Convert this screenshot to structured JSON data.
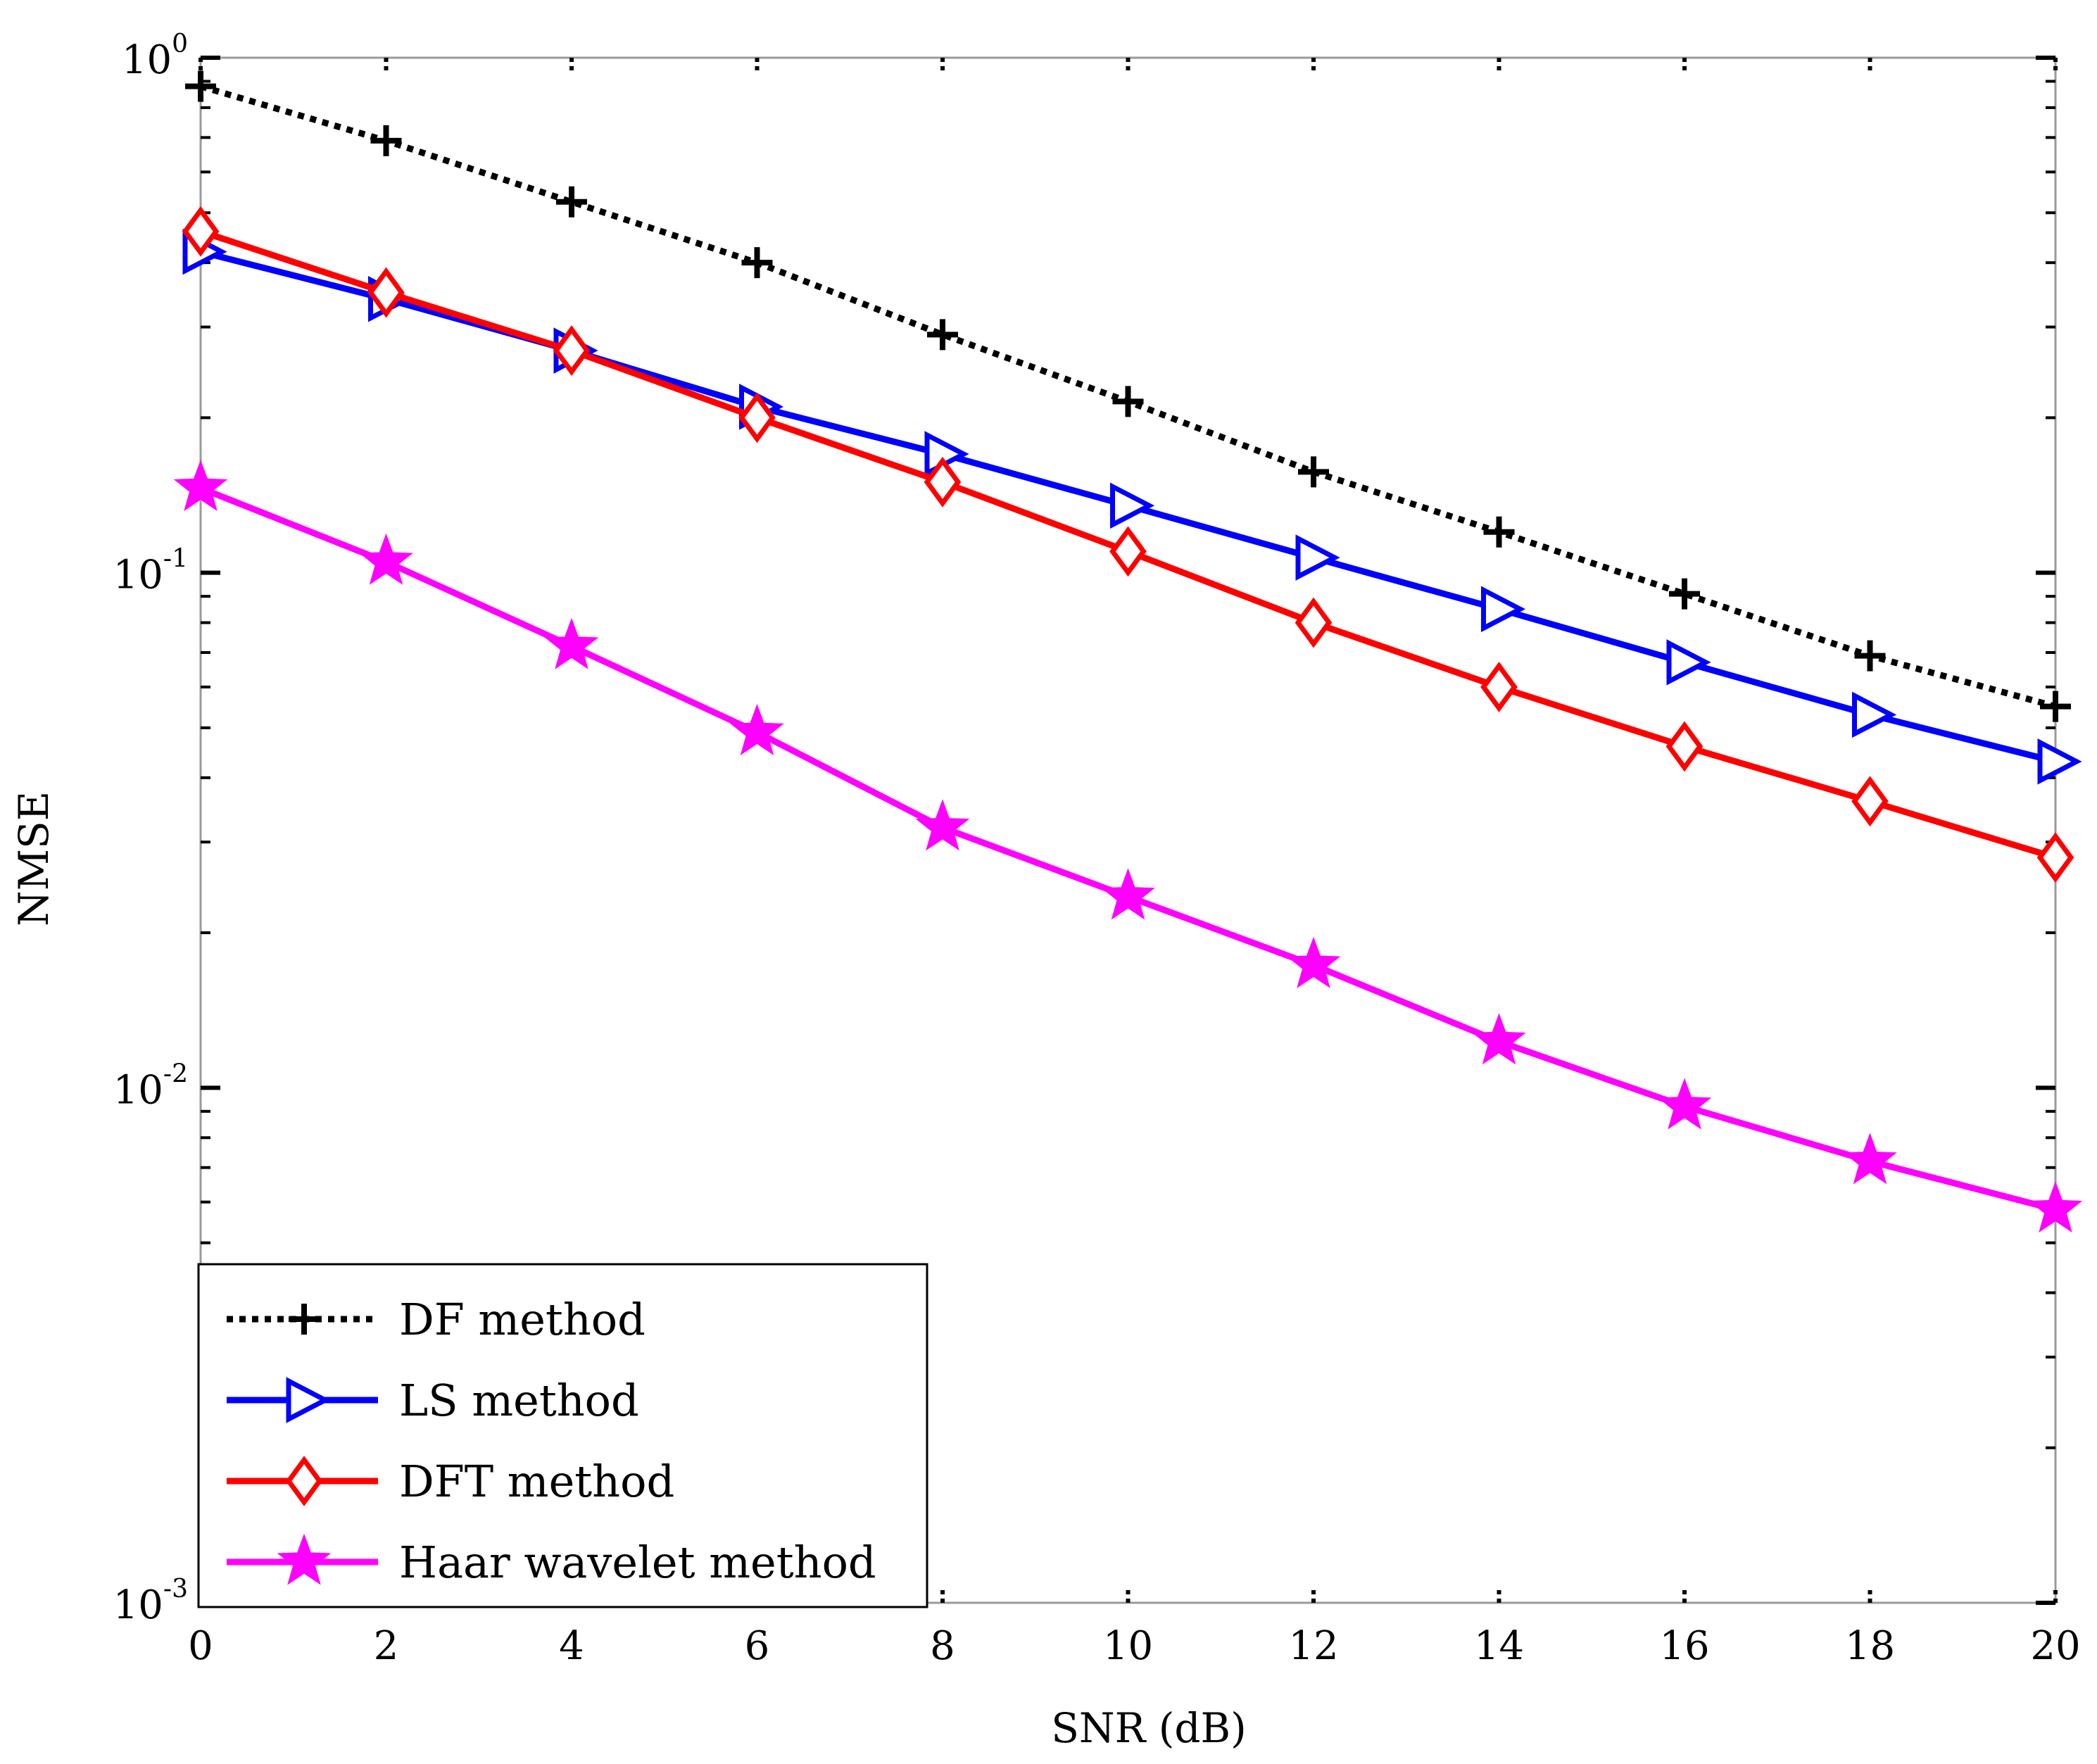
{
  "chart_data": {
    "type": "line",
    "title": "",
    "xlabel": "SNR (dB)",
    "ylabel": "NMSE",
    "yscale": "log",
    "xlim": [
      0,
      20
    ],
    "ylim": [
      0.001,
      1
    ],
    "x": [
      0,
      2,
      4,
      6,
      8,
      10,
      12,
      14,
      16,
      18,
      20
    ],
    "x_ticks": [
      "0",
      "2",
      "4",
      "6",
      "8",
      "10",
      "12",
      "14",
      "16",
      "18",
      "20"
    ],
    "y_ticks": [
      {
        "base": "10",
        "exp": "-3"
      },
      {
        "base": "10",
        "exp": "-2"
      },
      {
        "base": "10",
        "exp": "-1"
      },
      {
        "base": "10",
        "exp": "0"
      }
    ],
    "grid": false,
    "legend_position": "bottom-left",
    "series": [
      {
        "name": "DF method",
        "color": "#000000",
        "line_style": "dotted",
        "marker": "plus",
        "values": [
          0.88,
          0.69,
          0.525,
          0.4,
          0.29,
          0.215,
          0.157,
          0.12,
          0.091,
          0.069,
          0.055
        ]
      },
      {
        "name": "LS  method",
        "color": "#0000ff",
        "line_style": "solid",
        "marker": "triangle-right",
        "values": [
          0.42,
          0.34,
          0.27,
          0.21,
          0.17,
          0.135,
          0.107,
          0.085,
          0.067,
          0.053,
          0.043
        ]
      },
      {
        "name": "DFT method",
        "color": "#ff0000",
        "line_style": "solid",
        "marker": "diamond",
        "values": [
          0.46,
          0.35,
          0.27,
          0.2,
          0.15,
          0.11,
          0.08,
          0.06,
          0.046,
          0.036,
          0.028
        ]
      },
      {
        "name": "Haar wavelet method",
        "color": "#ff00ff",
        "line_style": "solid",
        "marker": "star",
        "values": [
          0.146,
          0.105,
          0.072,
          0.049,
          0.032,
          0.0235,
          0.0173,
          0.0123,
          0.0092,
          0.0072,
          0.0058
        ]
      }
    ]
  }
}
